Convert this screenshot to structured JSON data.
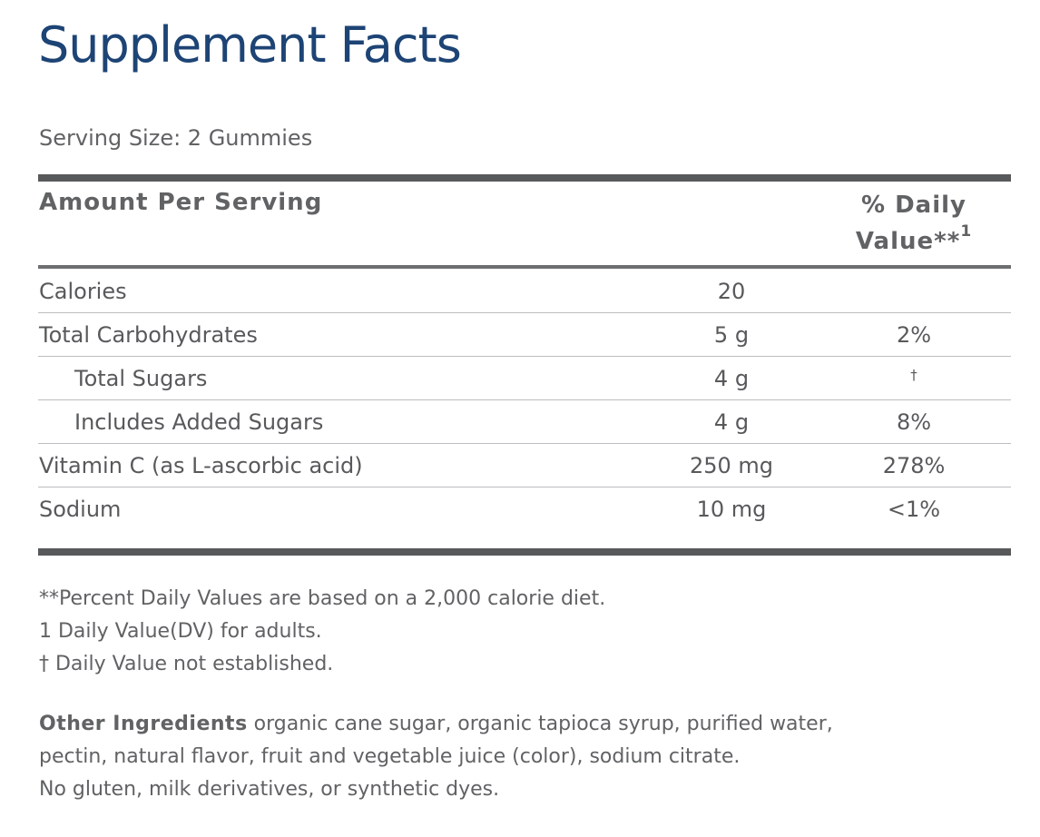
{
  "title": "Supplement Facts",
  "serving_size": "Serving Size: 2 Gummies",
  "table": {
    "header_amount": "Amount Per Serving",
    "header_dv_line1": "% Daily",
    "header_dv_line2": "Value**",
    "header_dv_sup": "1",
    "rows": [
      {
        "name": "Calories",
        "amount": "20",
        "dv": ""
      },
      {
        "name": "Total Carbohydrates",
        "amount": "5 g",
        "dv": "2%"
      },
      {
        "name": "Total Sugars",
        "amount": "4 g",
        "dv": "†"
      },
      {
        "name": "Includes Added Sugars",
        "amount": "4 g",
        "dv": "8%"
      },
      {
        "name": "Vitamin C (as L-ascorbic acid)",
        "amount": "250 mg",
        "dv": "278%"
      },
      {
        "name": "Sodium",
        "amount": "10 mg",
        "dv": "<1%"
      }
    ]
  },
  "footnotes": [
    "**Percent Daily Values are based on a 2,000 calorie diet.",
    "1 Daily Value(DV) for adults.",
    "† Daily Value not established."
  ],
  "other_ingredients": {
    "label": "Other Ingredients",
    "line1": " organic cane sugar, organic tapioca syrup, purified water,",
    "line2": "pectin, natural flavor, fruit and vegetable juice (color), sodium citrate.",
    "line3": "No gluten, milk derivatives, or synthetic dyes."
  }
}
